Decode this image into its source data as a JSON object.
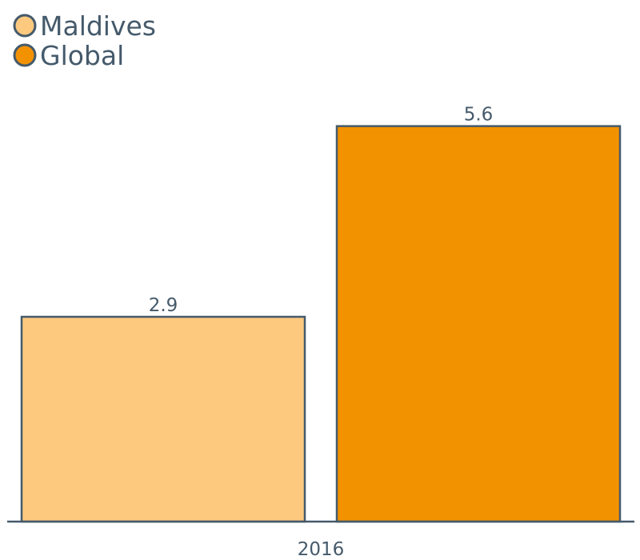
{
  "chart_data": {
    "type": "bar",
    "categories": [
      "2016"
    ],
    "series": [
      {
        "name": "Maldives",
        "values": [
          2.9
        ],
        "color": "#fcc97f"
      },
      {
        "name": "Global",
        "values": [
          5.6
        ],
        "color": "#f39200"
      }
    ],
    "ylim": [
      0,
      5.8
    ],
    "grid": false,
    "legend_position": "top-left",
    "outline_color": "#455a6b",
    "text_color": "#455a6b"
  }
}
